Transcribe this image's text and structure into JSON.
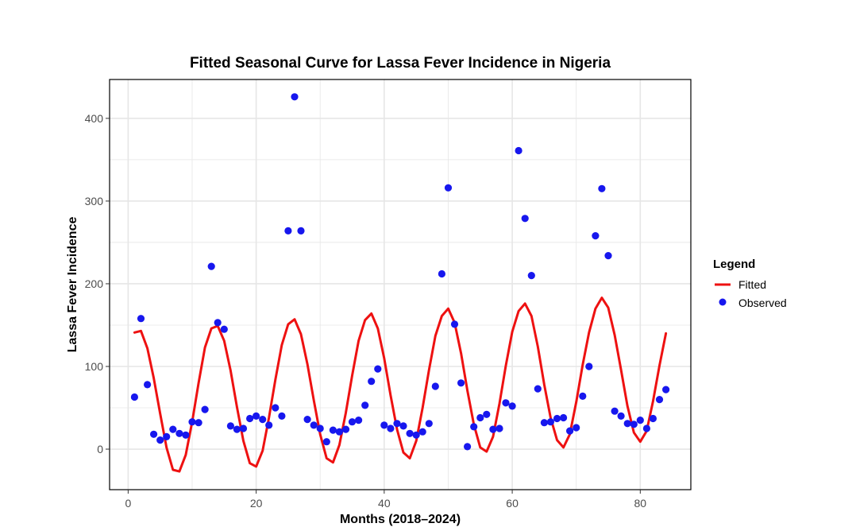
{
  "chart_data": {
    "type": "line",
    "title": "Fitted Seasonal Curve for Lassa Fever Incidence in Nigeria",
    "xlabel": "Months (2018–2024)",
    "ylabel": "Lassa Fever Incidence",
    "xlim": [
      -2.9,
      87.9
    ],
    "ylim": [
      -49,
      447
    ],
    "xticks": [
      0,
      20,
      40,
      60,
      80
    ],
    "yticks": [
      0,
      100,
      200,
      300,
      400
    ],
    "grid": true,
    "legend": {
      "title": "Legend",
      "position": "right"
    },
    "colors": {
      "fitted": "#ee1111",
      "observed": "#1717ee",
      "grid": "#e6e6e6"
    },
    "series": [
      {
        "name": "Fitted",
        "kind": "line",
        "x": [
          1,
          2,
          3,
          4,
          5,
          6,
          7,
          8,
          9,
          10,
          11,
          12,
          13,
          14,
          15,
          16,
          17,
          18,
          19,
          20,
          21,
          22,
          23,
          24,
          25,
          26,
          27,
          28,
          29,
          30,
          31,
          32,
          33,
          34,
          35,
          36,
          37,
          38,
          39,
          40,
          41,
          42,
          43,
          44,
          45,
          46,
          47,
          48,
          49,
          50,
          51,
          52,
          53,
          54,
          55,
          56,
          57,
          58,
          59,
          60,
          61,
          62,
          63,
          64,
          65,
          66,
          67,
          68,
          69,
          70,
          71,
          72,
          73,
          74,
          75,
          76,
          77,
          78,
          79,
          80,
          81,
          82,
          83,
          84
        ],
        "y": [
          141,
          143,
          122,
          86,
          43,
          2,
          -25,
          -27,
          -7,
          33,
          80,
          123,
          146,
          149,
          131,
          95,
          51,
          10,
          -17,
          -21,
          -2,
          38,
          84,
          126,
          151,
          157,
          139,
          103,
          59,
          18,
          -11,
          -16,
          5,
          44,
          89,
          131,
          156,
          164,
          146,
          110,
          65,
          24,
          -4,
          -11,
          10,
          50,
          96,
          137,
          161,
          170,
          153,
          116,
          71,
          30,
          2,
          -3,
          15,
          55,
          101,
          142,
          167,
          176,
          161,
          124,
          78,
          38,
          11,
          2,
          18,
          57,
          102,
          141,
          170,
          183,
          171,
          138,
          96,
          52,
          20,
          9,
          22,
          58,
          101,
          140
        ]
      },
      {
        "name": "Observed",
        "kind": "scatter",
        "x": [
          1,
          2,
          3,
          4,
          5,
          6,
          7,
          8,
          9,
          10,
          11,
          12,
          13,
          14,
          15,
          16,
          17,
          18,
          19,
          20,
          21,
          22,
          23,
          24,
          25,
          26,
          27,
          28,
          29,
          30,
          31,
          32,
          33,
          34,
          35,
          36,
          37,
          38,
          39,
          40,
          41,
          42,
          43,
          44,
          45,
          46,
          47,
          48,
          49,
          50,
          51,
          52,
          53,
          54,
          55,
          56,
          57,
          58,
          59,
          60,
          61,
          62,
          63,
          64,
          65,
          66,
          67,
          68,
          69,
          70,
          71,
          72,
          73,
          74,
          75,
          76,
          77,
          78,
          79,
          80,
          81,
          82,
          83,
          84
        ],
        "y": [
          63,
          158,
          78,
          18,
          11,
          15,
          24,
          19,
          17,
          33,
          32,
          48,
          221,
          153,
          145,
          28,
          24,
          25,
          37,
          40,
          36,
          29,
          50,
          40,
          264,
          426,
          264,
          36,
          29,
          25,
          9,
          23,
          21,
          24,
          33,
          35,
          53,
          82,
          97,
          29,
          25,
          31,
          28,
          19,
          17,
          21,
          31,
          76,
          212,
          316,
          151,
          80,
          3,
          27,
          38,
          42,
          24,
          25,
          56,
          52,
          361,
          279,
          210,
          73,
          32,
          33,
          37,
          38,
          22,
          26,
          64,
          100,
          258,
          315,
          234,
          46,
          40,
          31,
          30,
          35,
          25,
          37,
          60,
          72
        ]
      }
    ]
  }
}
